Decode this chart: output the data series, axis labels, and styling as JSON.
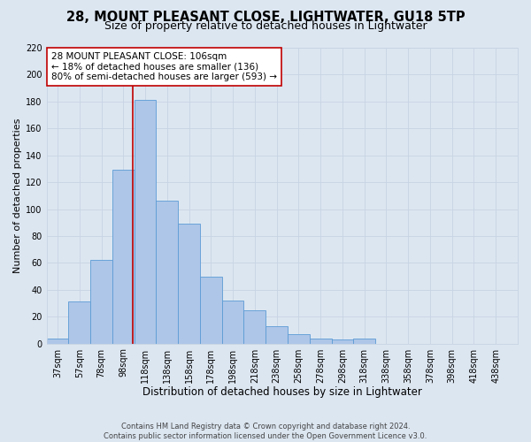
{
  "title1": "28, MOUNT PLEASANT CLOSE, LIGHTWATER, GU18 5TP",
  "title2": "Size of property relative to detached houses in Lightwater",
  "xlabel": "Distribution of detached houses by size in Lightwater",
  "ylabel": "Number of detached properties",
  "bar_heights": [
    4,
    31,
    62,
    129,
    181,
    106,
    89,
    50,
    32,
    25,
    13,
    7,
    4,
    3,
    4
  ],
  "bin_left_edges": [
    27,
    47,
    67,
    87,
    107,
    127,
    147,
    167,
    187,
    207,
    227,
    247,
    267,
    287,
    307
  ],
  "bin_widths": [
    20,
    20,
    20,
    20,
    20,
    20,
    20,
    20,
    20,
    20,
    20,
    20,
    20,
    20,
    20
  ],
  "tick_labels": [
    "37sqm",
    "57sqm",
    "78sqm",
    "98sqm",
    "118sqm",
    "138sqm",
    "158sqm",
    "178sqm",
    "198sqm",
    "218sqm",
    "238sqm",
    "258sqm",
    "278sqm",
    "298sqm",
    "318sqm",
    "338sqm",
    "358sqm",
    "378sqm",
    "398sqm",
    "418sqm",
    "438sqm"
  ],
  "all_tick_positions": [
    37,
    57,
    77,
    97,
    117,
    137,
    157,
    177,
    197,
    217,
    237,
    257,
    277,
    297,
    317,
    337,
    357,
    377,
    397,
    417,
    437
  ],
  "bar_color": "#aec6e8",
  "bar_edge_color": "#5b9bd5",
  "property_line_x": 106,
  "property_line_color": "#c00000",
  "annotation_line1": "28 MOUNT PLEASANT CLOSE: 106sqm",
  "annotation_line2": "← 18% of detached houses are smaller (136)",
  "annotation_line3": "80% of semi-detached houses are larger (593) →",
  "annotation_box_color": "#ffffff",
  "annotation_box_edge_color": "#c00000",
  "xlim": [
    27,
    457
  ],
  "ylim": [
    0,
    220
  ],
  "yticks": [
    0,
    20,
    40,
    60,
    80,
    100,
    120,
    140,
    160,
    180,
    200,
    220
  ],
  "grid_color": "#c8d4e3",
  "background_color": "#dce6f1",
  "footer1": "Contains HM Land Registry data © Crown copyright and database right 2024.",
  "footer2": "Contains public sector information licensed under the Open Government Licence v3.0.",
  "title1_fontsize": 10.5,
  "title2_fontsize": 9,
  "xlabel_fontsize": 8.5,
  "ylabel_fontsize": 8,
  "tick_fontsize": 7,
  "annotation_fontsize": 7.5,
  "footer_fontsize": 6
}
